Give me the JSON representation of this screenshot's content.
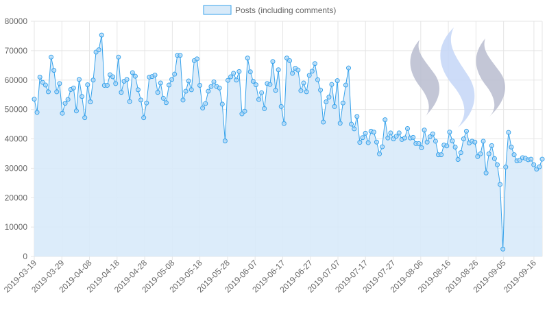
{
  "chart_data": {
    "type": "area",
    "legend": {
      "label": "Posts (including comments)",
      "position": "top-center"
    },
    "colors": {
      "line": "#36a2eb",
      "fill": "#d8eaf9",
      "grid": "#e5e5e5",
      "axis_text": "#666666",
      "logo_light": "#c4d6f7",
      "logo_dark": "#b9bccf"
    },
    "ylim": [
      0,
      80000
    ],
    "yticks": [
      "0",
      "10000",
      "20000",
      "30000",
      "40000",
      "50000",
      "60000",
      "70000",
      "80000"
    ],
    "xtick_labels": [
      "2019-03-19",
      "2019-03-29",
      "2019-04-08",
      "2019-04-18",
      "2019-04-28",
      "2019-05-08",
      "2019-05-18",
      "2019-05-28",
      "2019-06-07",
      "2019-06-17",
      "2019-06-27",
      "2019-07-07",
      "2019-07-17",
      "2019-07-27",
      "2019-08-06",
      "2019-08-16",
      "2019-08-26",
      "2019-09-05",
      "2019-09-16"
    ],
    "x_start": "2019-03-19",
    "x_end": "2019-09-19",
    "grid": true,
    "logo": "steem-logo",
    "values": [
      53500,
      49000,
      61000,
      59200,
      58300,
      56000,
      67800,
      63300,
      56000,
      58800,
      48700,
      52100,
      53400,
      56800,
      57300,
      49500,
      60200,
      54400,
      47200,
      58400,
      52600,
      60000,
      69500,
      70300,
      75300,
      58200,
      58200,
      61800,
      61100,
      58800,
      67800,
      55800,
      59600,
      60200,
      52700,
      62500,
      61300,
      56700,
      53200,
      47200,
      52200,
      61000,
      61200,
      61700,
      55800,
      59000,
      53800,
      52300,
      58300,
      60200,
      62000,
      68400,
      68400,
      53200,
      56200,
      59700,
      56700,
      66600,
      67200,
      58200,
      50500,
      52000,
      56200,
      57800,
      59400,
      57800,
      57300,
      51800,
      39300,
      59900,
      61100,
      62300,
      60000,
      62900,
      48500,
      49400,
      67500,
      62800,
      59600,
      58400,
      53400,
      55700,
      50300,
      58800,
      58500,
      66300,
      56500,
      63500,
      51000,
      45200,
      67500,
      66600,
      62300,
      64000,
      63400,
      56400,
      59000,
      56000,
      61600,
      63000,
      65600,
      60100,
      56600,
      45700,
      52600,
      54200,
      58500,
      51000,
      59800,
      45300,
      52200,
      58300,
      64100,
      45000,
      43400,
      47600,
      38800,
      40400,
      41900,
      38700,
      42600,
      42300,
      38900,
      34900,
      37300,
      46500,
      40300,
      42000,
      40000,
      40900,
      42000,
      39800,
      40300,
      43500,
      40300,
      40500,
      38400,
      38400,
      37000,
      43000,
      38900,
      40700,
      41700,
      39200,
      34600,
      34600,
      37900,
      37600,
      42300,
      39300,
      37200,
      33000,
      35300,
      40000,
      42600,
      38600,
      39200,
      38900,
      34000,
      34900,
      39200,
      28400,
      34900,
      37700,
      33300,
      31200,
      24500,
      2500,
      30400,
      42200,
      37200,
      34600,
      32500,
      32700,
      33600,
      33400,
      32900,
      33100,
      31200,
      29700,
      30500,
      33100
    ]
  }
}
